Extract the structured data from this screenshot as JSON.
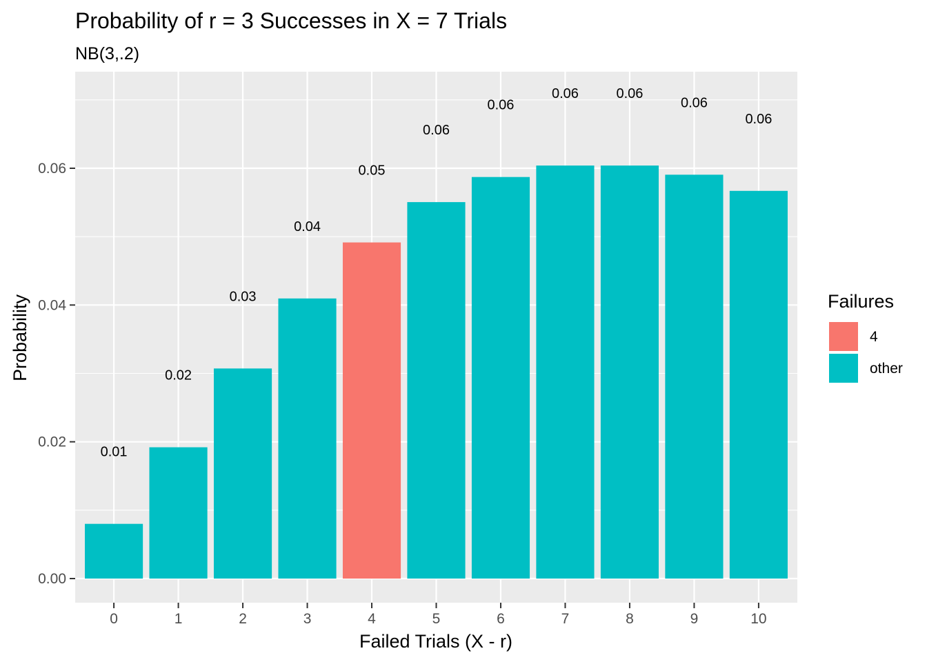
{
  "chart_data": {
    "type": "bar",
    "title": "Probability of r = 3 Successes in X = 7 Trials",
    "subtitle": "NB(3,.2)",
    "xlabel": "Failed Trials (X - r)",
    "ylabel": "Probability",
    "categories": [
      "0",
      "1",
      "2",
      "3",
      "4",
      "5",
      "6",
      "7",
      "8",
      "9",
      "10"
    ],
    "values": [
      0.008,
      0.0192,
      0.03072,
      0.04096,
      0.049152,
      0.05505,
      0.05872,
      0.060398,
      0.060398,
      0.059056,
      0.056693
    ],
    "data_labels": [
      "0.01",
      "0.02",
      "0.03",
      "0.04",
      "0.05",
      "0.06",
      "0.06",
      "0.06",
      "0.06",
      "0.06",
      "0.06"
    ],
    "groups": [
      "other",
      "other",
      "other",
      "other",
      "4",
      "other",
      "other",
      "other",
      "other",
      "other",
      "other"
    ],
    "ylim": [
      -0.0035,
      0.0735
    ],
    "yticks": [
      0.0,
      0.02,
      0.04,
      0.06
    ],
    "ytick_labels": [
      "0.00",
      "0.02",
      "0.04",
      "0.06"
    ],
    "grid": true,
    "legend": {
      "title": "Failures",
      "position": "right",
      "items": [
        {
          "label": "4",
          "color": "#F8766D"
        },
        {
          "label": "other",
          "color": "#00BFC4"
        }
      ]
    },
    "colors": {
      "4": "#F8766D",
      "other": "#00BFC4",
      "panel": "#EBEBEB",
      "grid": "#FFFFFF"
    }
  }
}
